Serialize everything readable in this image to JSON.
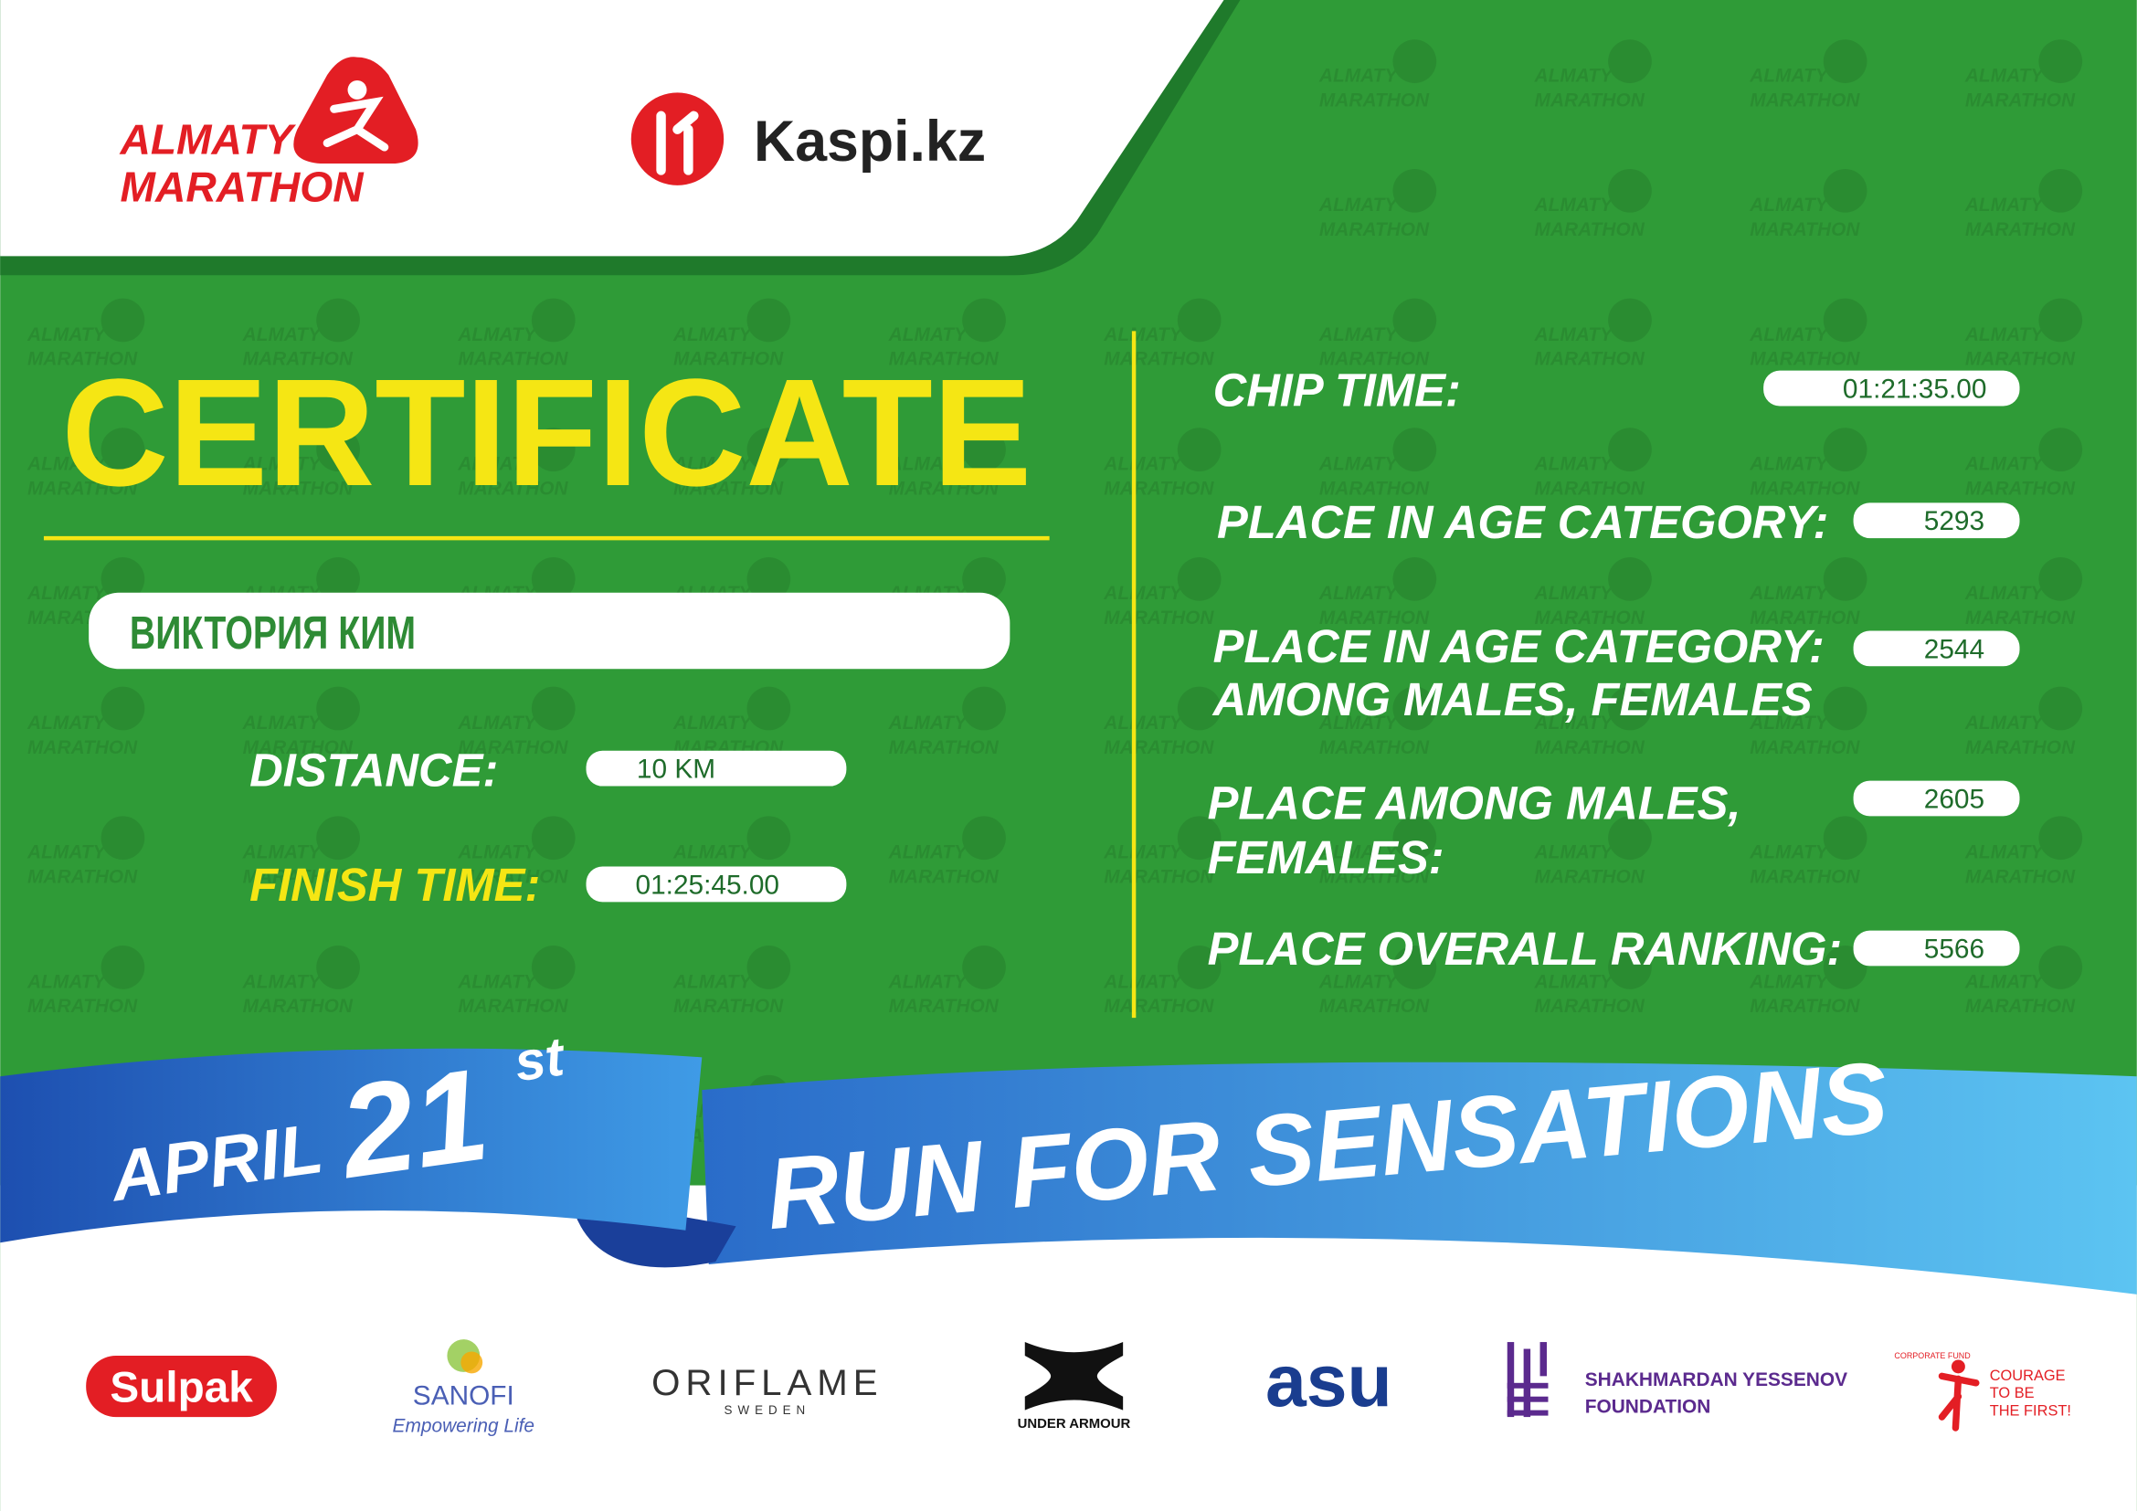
{
  "header": {
    "event_logo": [
      "ALMATY",
      "MARATHON"
    ],
    "sponsor_logo": "Kaspi.kz"
  },
  "certificate": {
    "title": "CERTIFICATE",
    "name": "ВИКТОРИЯ КИМ",
    "fields": [
      {
        "label": "DISTANCE:",
        "value": "10 KM"
      },
      {
        "label": "FINISH TIME:",
        "value": "01:25:45.00"
      }
    ],
    "results": [
      {
        "label": [
          "CHIP TIME:"
        ],
        "value": "01:21:35.00"
      },
      {
        "label": [
          "PLACE IN AGE CATEGORY:"
        ],
        "value": 5293
      },
      {
        "label": [
          "PLACE IN AGE CATEGORY:",
          "AMONG MALES, FEMALES"
        ],
        "value": 2544
      },
      {
        "label": [
          "PLACE AMONG MALES,",
          "FEMALES:"
        ],
        "value": 2605
      },
      {
        "label": [
          "PLACE OVERALL RANKING:"
        ],
        "value": 5566
      }
    ]
  },
  "banner": {
    "month": "APRIL",
    "day": 21,
    "day_suffix": "st",
    "slogan": "RUN FOR SENSATIONS"
  },
  "sponsors": {
    "sulpak": "Sulpak",
    "sanofi": [
      "SANOFI",
      "Empowering Life"
    ],
    "oriflame": [
      "ORIFLAME",
      "SWEDEN"
    ],
    "under_armour": "UNDER ARMOUR",
    "asu": "asu",
    "yessenov": [
      "SHAKHMARDAN YESSENOV",
      "FOUNDATION"
    ],
    "corporate_fund": [
      "CORPORATE FUND",
      "COURAGE",
      "TO BE",
      "THE FIRST!"
    ]
  }
}
